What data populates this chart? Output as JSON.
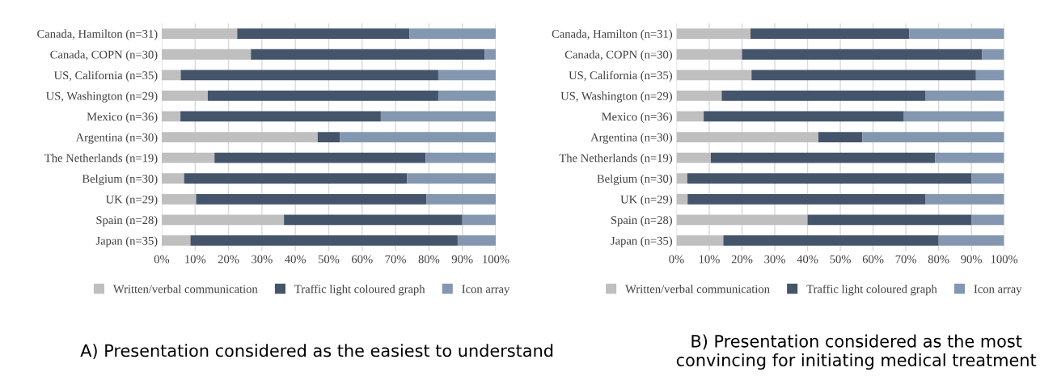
{
  "chart_data": [
    {
      "type": "bar",
      "orientation": "horizontal",
      "stacked": true,
      "categories": [
        "Canada, Hamilton (n=31)",
        "Canada, COPN (n=30)",
        "US, California (n=35)",
        "US, Washington (n=29)",
        "Mexico (n=36)",
        "Argentina (n=30)",
        "The Netherlands (n=19)",
        "Belgium (n=30)",
        "UK (n=29)",
        "Spain (n=28)",
        "Japan (n=35)"
      ],
      "series": [
        {
          "name": "Written/verbal communication",
          "color": "#bfbfbf",
          "values": [
            22.6,
            26.7,
            5.7,
            13.8,
            5.6,
            46.7,
            15.8,
            6.7,
            10.3,
            36.6,
            8.6
          ]
        },
        {
          "name": "Traffic light coloured graph",
          "color": "#44546a",
          "values": [
            51.6,
            70.0,
            77.1,
            69.0,
            60.0,
            6.7,
            63.2,
            66.7,
            69.0,
            53.4,
            80.0
          ]
        },
        {
          "name": "Icon array",
          "color": "#8497b0",
          "values": [
            25.8,
            3.3,
            17.2,
            17.2,
            34.4,
            46.6,
            21.0,
            26.6,
            20.7,
            10.0,
            11.4
          ]
        }
      ],
      "xlim": [
        0,
        100
      ],
      "xticks": [
        {
          "value": 0,
          "label": "0%"
        },
        {
          "value": 10,
          "label": "10%"
        },
        {
          "value": 20,
          "label": "20%"
        },
        {
          "value": 30,
          "label": "30%"
        },
        {
          "value": 40,
          "label": "40%"
        },
        {
          "value": 50,
          "label": "50%"
        },
        {
          "value": 60,
          "label": "60%"
        },
        {
          "value": 70,
          "label": "70%"
        },
        {
          "value": 80,
          "label": "80%"
        },
        {
          "value": 90,
          "label": "90%"
        },
        {
          "value": 100,
          "label": "100%"
        }
      ],
      "grid": "x",
      "legend": "bottom",
      "annotations": [
        "A) Presentation considered as the easiest to understand"
      ]
    },
    {
      "type": "bar",
      "orientation": "horizontal",
      "stacked": true,
      "categories": [
        "Canada, Hamilton (n=31)",
        "Canada, COPN (n=30)",
        "US, California (n=35)",
        "US, Washington (n=29)",
        "Mexico (n=36)",
        "Argentina (n=30)",
        "The Netherlands (n=19)",
        "Belgium (n=30)",
        "UK (n=29)",
        "Spain (n=28)",
        "Japan (n=35)"
      ],
      "series": [
        {
          "name": "Written/verbal communication",
          "color": "#bfbfbf",
          "values": [
            22.6,
            20.0,
            22.9,
            13.8,
            8.3,
            43.3,
            10.5,
            3.3,
            3.4,
            40.0,
            14.3
          ]
        },
        {
          "name": "Traffic light coloured graph",
          "color": "#44546a",
          "values": [
            48.4,
            73.3,
            68.5,
            62.1,
            61.1,
            13.4,
            68.4,
            86.7,
            72.5,
            50.0,
            65.7
          ]
        },
        {
          "name": "Icon array",
          "color": "#8497b0",
          "values": [
            29.0,
            6.7,
            8.6,
            24.1,
            30.6,
            43.3,
            21.1,
            10.0,
            24.1,
            10.0,
            20.0
          ]
        }
      ],
      "xlim": [
        0,
        100
      ],
      "xticks": [
        {
          "value": 0,
          "label": "0%"
        },
        {
          "value": 10,
          "label": "10%"
        },
        {
          "value": 20,
          "label": "20%"
        },
        {
          "value": 30,
          "label": "30%"
        },
        {
          "value": 40,
          "label": "40%"
        },
        {
          "value": 50,
          "label": "50%"
        },
        {
          "value": 60,
          "label": "60%"
        },
        {
          "value": 70,
          "label": "70%"
        },
        {
          "value": 80,
          "label": "80%"
        },
        {
          "value": 90,
          "label": "90%"
        },
        {
          "value": 100,
          "label": "100%"
        }
      ],
      "grid": "x",
      "legend": "bottom",
      "annotations": [
        "B) Presentation considered as the most convincing for initiating medical treatment"
      ]
    }
  ]
}
